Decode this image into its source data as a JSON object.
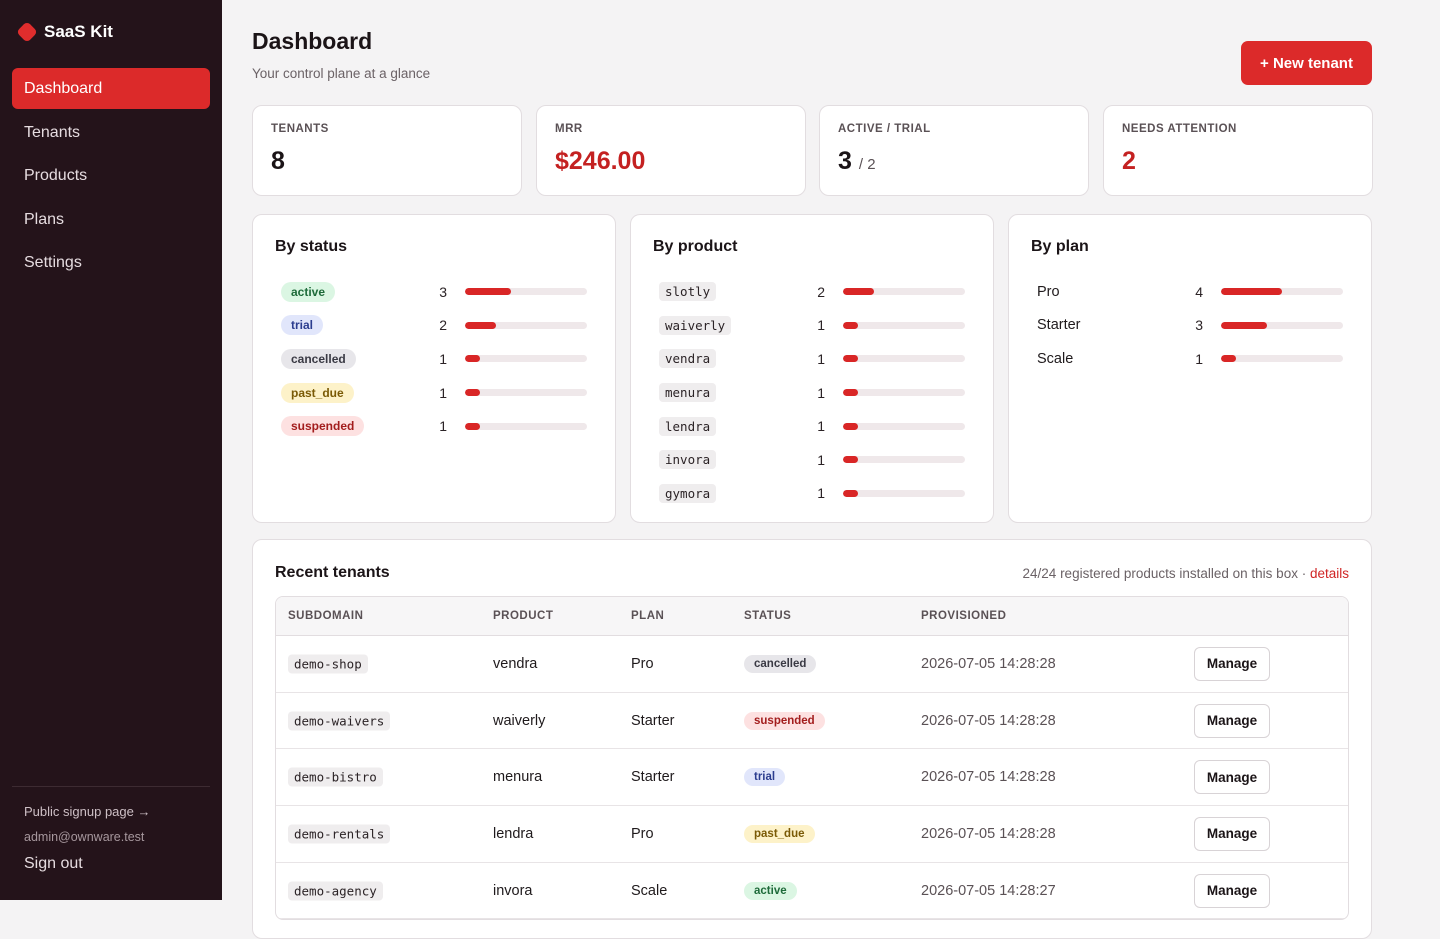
{
  "app": {
    "name": "SaaS Kit"
  },
  "sidebar": {
    "items": [
      {
        "label": "Dashboard",
        "active": true
      },
      {
        "label": "Tenants"
      },
      {
        "label": "Products"
      },
      {
        "label": "Plans"
      },
      {
        "label": "Settings"
      }
    ],
    "footer": {
      "signup_link": "Public signup page →",
      "email": "admin@ownware.test",
      "sign_out": "Sign out"
    }
  },
  "header": {
    "title": "Dashboard",
    "subtitle": "Your control plane at a glance",
    "new_button": "+ New tenant"
  },
  "stats": [
    {
      "label": "TENANTS",
      "value": "8",
      "sub": "",
      "color": "#1b1417"
    },
    {
      "label": "MRR",
      "value": "$246.00",
      "sub": "",
      "color": "#c42121"
    },
    {
      "label": "ACTIVE / TRIAL",
      "value": "3",
      "sub": "/ 2",
      "color": "#1b1417"
    },
    {
      "label": "NEEDS ATTENTION",
      "value": "2",
      "sub": "",
      "color": "#c42121"
    }
  ],
  "breakdowns": {
    "status": {
      "title": "By status",
      "max": 8,
      "rows": [
        {
          "label": "active",
          "count": "3",
          "value": 3
        },
        {
          "label": "trial",
          "count": "2",
          "value": 2
        },
        {
          "label": "cancelled",
          "count": "1",
          "value": 1
        },
        {
          "label": "past_due",
          "count": "1",
          "value": 1
        },
        {
          "label": "suspended",
          "count": "1",
          "value": 1
        }
      ]
    },
    "product": {
      "title": "By product",
      "max": 8,
      "rows": [
        {
          "label": "slotly",
          "count": "2",
          "value": 2
        },
        {
          "label": "waiverly",
          "count": "1",
          "value": 1
        },
        {
          "label": "vendra",
          "count": "1",
          "value": 1
        },
        {
          "label": "menura",
          "count": "1",
          "value": 1
        },
        {
          "label": "lendra",
          "count": "1",
          "value": 1
        },
        {
          "label": "invora",
          "count": "1",
          "value": 1
        },
        {
          "label": "gymora",
          "count": "1",
          "value": 1
        }
      ]
    },
    "plan": {
      "title": "By plan",
      "max": 8,
      "rows": [
        {
          "label": "Pro",
          "count": "4",
          "value": 4
        },
        {
          "label": "Starter",
          "count": "3",
          "value": 3
        },
        {
          "label": "Scale",
          "count": "1",
          "value": 1
        }
      ]
    }
  },
  "recent": {
    "title": "Recent tenants",
    "meta_text": "24/24 registered products installed on this box ·",
    "meta_link": "details",
    "columns": [
      "SUBDOMAIN",
      "PRODUCT",
      "PLAN",
      "STATUS",
      "PROVISIONED"
    ],
    "rows": [
      {
        "subdomain": "demo-shop",
        "product": "vendra",
        "plan": "Pro",
        "status": "cancelled",
        "provisioned": "2026-07-05 14:28:28",
        "action": "Manage"
      },
      {
        "subdomain": "demo-waivers",
        "product": "waiverly",
        "plan": "Starter",
        "status": "suspended",
        "provisioned": "2026-07-05 14:28:28",
        "action": "Manage"
      },
      {
        "subdomain": "demo-bistro",
        "product": "menura",
        "plan": "Starter",
        "status": "trial",
        "provisioned": "2026-07-05 14:28:28",
        "action": "Manage"
      },
      {
        "subdomain": "demo-rentals",
        "product": "lendra",
        "plan": "Pro",
        "status": "past_due",
        "provisioned": "2026-07-05 14:28:28",
        "action": "Manage"
      },
      {
        "subdomain": "demo-agency",
        "product": "invora",
        "plan": "Scale",
        "status": "active",
        "provisioned": "2026-07-05 14:28:27",
        "action": "Manage"
      }
    ]
  }
}
